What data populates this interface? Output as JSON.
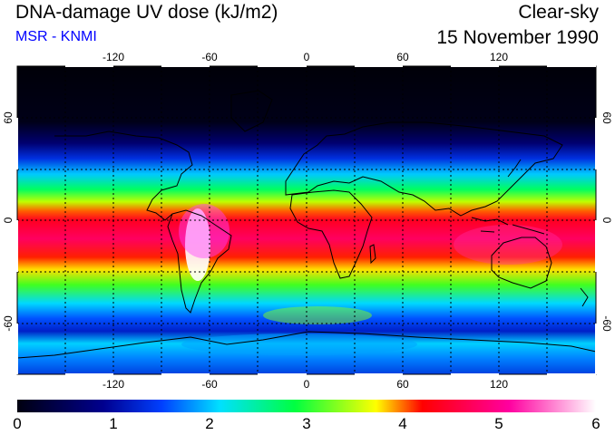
{
  "header": {
    "title": "DNA-damage UV dose (kJ/m2)",
    "subtitle": "MSR - KNMI",
    "subtitle_color": "#0000ff",
    "condition": "Clear-sky",
    "date": "15 November 1990"
  },
  "map": {
    "projection": "equirectangular",
    "lon_ticks": [
      "-120",
      "-60",
      "0",
      "60",
      "120"
    ],
    "lat_ticks": [
      "60",
      "0",
      "-60"
    ],
    "gridlines": "dotted every 30 degrees",
    "coastlines": "black"
  },
  "colorbar": {
    "labels": [
      "0",
      "1",
      "2",
      "3",
      "4",
      "5",
      "6"
    ],
    "range": [
      0,
      6
    ],
    "colors": [
      "#000010",
      "#000090",
      "#0040ff",
      "#00e0ff",
      "#00ff40",
      "#ffff00",
      "#ff0000",
      "#ff00a0",
      "#ffffff"
    ]
  }
}
